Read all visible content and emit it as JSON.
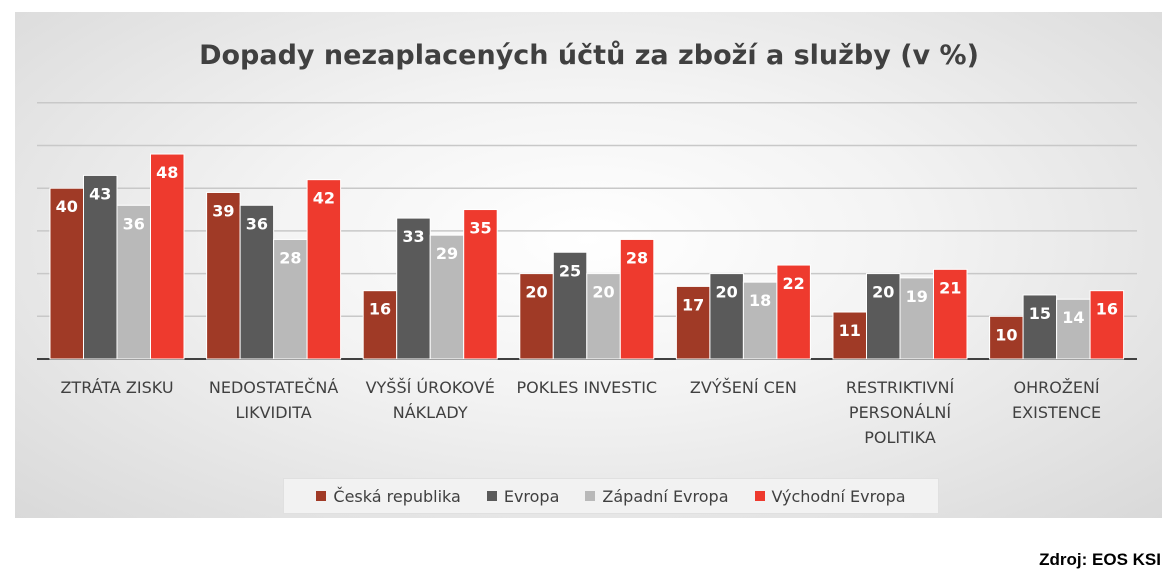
{
  "chart_data": {
    "type": "bar",
    "title": "Dopady nezaplacených účtů za zboží a služby (v %)",
    "categories": [
      [
        "ZTRÁTA ZISKU"
      ],
      [
        "NEDOSTATEČNÁ",
        "LIKVIDITA"
      ],
      [
        "VYŠŠÍ ÚROKOVÉ",
        "NÁKLADY"
      ],
      [
        "POKLES INVESTIC"
      ],
      [
        "ZVÝŠENÍ CEN"
      ],
      [
        "RESTRIKTIVNÍ",
        "PERSONÁLNÍ",
        "POLITIKA"
      ],
      [
        "OHROŽENÍ",
        "EXISTENCE"
      ]
    ],
    "series": [
      {
        "name": "Česká republika",
        "color": "#a03a26",
        "values": [
          40,
          39,
          16,
          20,
          17,
          11,
          10
        ]
      },
      {
        "name": "Evropa",
        "color": "#5a5a5a",
        "values": [
          43,
          36,
          33,
          25,
          20,
          20,
          15
        ]
      },
      {
        "name": "Západní Evropa",
        "color": "#b9b9b9",
        "values": [
          36,
          28,
          29,
          20,
          18,
          19,
          14
        ]
      },
      {
        "name": "Východní Evropa",
        "color": "#ee3a2e",
        "values": [
          48,
          42,
          35,
          28,
          22,
          21,
          16
        ]
      }
    ],
    "ylim": [
      0,
      60
    ],
    "grid": true,
    "legend": "bottom"
  },
  "source": "Zdroj: EOS KSI"
}
